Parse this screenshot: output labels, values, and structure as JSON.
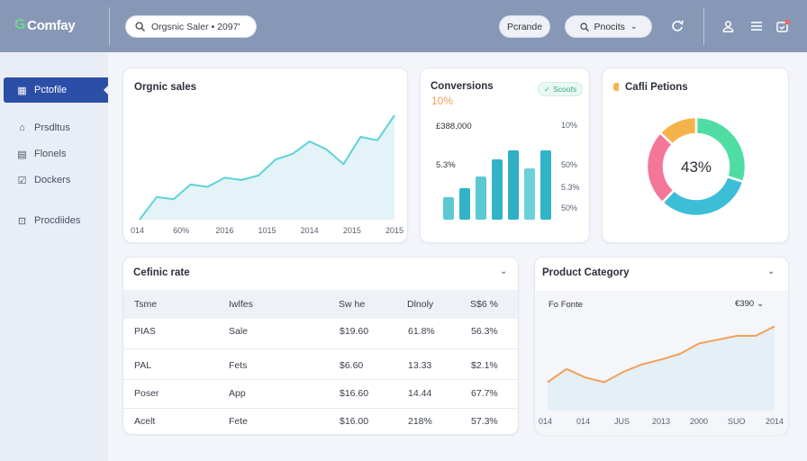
{
  "header": {
    "logo_text": "Comfay",
    "search_text": "Orgsnic Saler • 2097'",
    "profile_pill": "Pcrande",
    "products_pill": "Pnocits",
    "icons": [
      "refresh-icon",
      "user-icon",
      "menu-icon",
      "notification-icon"
    ]
  },
  "sidebar": {
    "items": [
      {
        "label": "Pctofile",
        "icon": "calendar-icon",
        "active": true
      },
      {
        "label": "Prsdltus",
        "icon": "bag-icon",
        "active": false
      },
      {
        "label": "Flonels",
        "icon": "document-icon",
        "active": false
      },
      {
        "label": "Dockers",
        "icon": "check-icon",
        "active": false
      },
      {
        "label": "Procdiides",
        "icon": "cart-icon",
        "active": false
      }
    ]
  },
  "organic_sales": {
    "title": "Orgnic sales",
    "chart_data": {
      "type": "area",
      "x_tick_labels": [
        "014",
        "60%",
        "2016",
        "1015",
        "2014",
        "2015",
        "2015"
      ],
      "values": [
        0,
        20,
        18,
        31,
        29,
        37,
        35,
        39,
        53,
        58,
        69,
        62,
        49,
        73,
        70,
        92
      ],
      "ylim": [
        0,
        100
      ],
      "color": "#5fd2d6"
    }
  },
  "conversions": {
    "title": "Conversions",
    "value": "10%",
    "badge": "Scoofs",
    "left_labels": [
      "£388,000",
      "5.3%"
    ],
    "right_labels": [
      "10%",
      "50%",
      "5.3%",
      "50%"
    ],
    "chart_data": {
      "type": "bar",
      "values": [
        25,
        35,
        48,
        67,
        77,
        57,
        77
      ],
      "ylim": [
        0,
        80
      ],
      "colors": [
        "#5cc9d2",
        "#33b3c6",
        "#5cc9d2",
        "#33b3c6",
        "#2fb0c5",
        "#6dd1d9",
        "#33b3c6"
      ]
    }
  },
  "category_chart": {
    "title": "Cafli Petions",
    "center_label": "43%",
    "chart_data": {
      "type": "pie",
      "values": [
        30,
        32,
        25,
        13
      ],
      "colors": [
        "#4fdda4",
        "#3cbfd6",
        "#f47799",
        "#f6b24a"
      ]
    }
  },
  "table_card": {
    "title": "Cefinic rate",
    "headers": [
      "Tsme",
      "Iwlfes",
      "Sw he",
      "Dlnoly",
      "S$6 %"
    ],
    "rows": [
      [
        "PIAS",
        "Sale",
        "$19.60",
        "61.8%",
        "56.3%"
      ],
      [
        "PAL",
        "Fets",
        "$6.60",
        "13.33",
        "$2.1%"
      ],
      [
        "Poser",
        "App",
        "$16.60",
        "14.44",
        "67.7%"
      ],
      [
        "Acelt",
        "Fete",
        "$16.00",
        "218%",
        "57.3%"
      ]
    ]
  },
  "product_category": {
    "title": "Product Category",
    "sub_label": "Fo Fonte",
    "sub_value": "€390",
    "chart_data": {
      "type": "area",
      "x_tick_labels": [
        "014",
        "014",
        "JUS",
        "2013",
        "2000",
        "SUO",
        "2014"
      ],
      "values": [
        30,
        44,
        35,
        30,
        41,
        49,
        54,
        60,
        71,
        75,
        79,
        79,
        89
      ],
      "ylim": [
        0,
        100
      ],
      "color": "#f0a15a"
    }
  }
}
